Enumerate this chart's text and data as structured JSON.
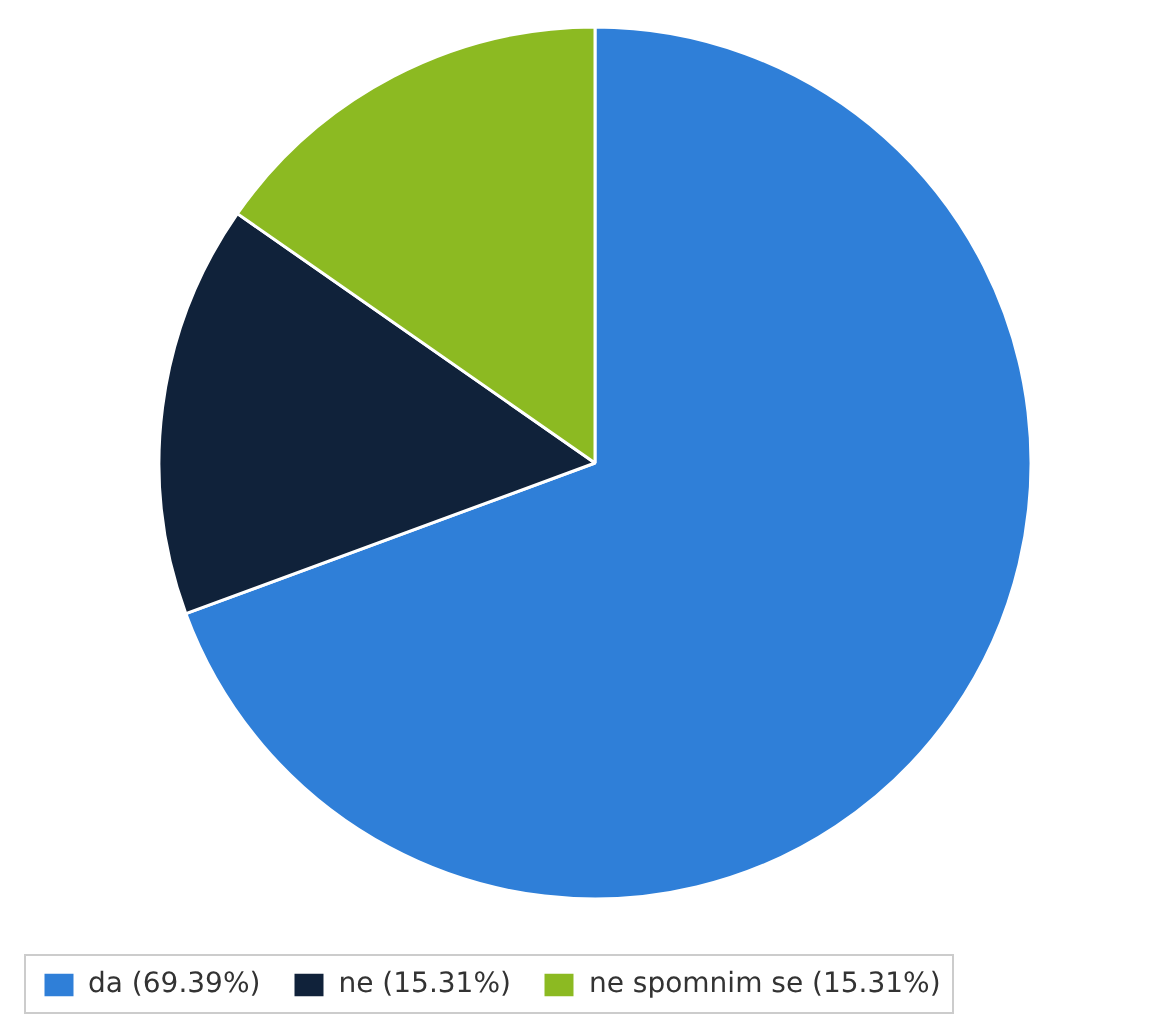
{
  "chart_data": {
    "type": "pie",
    "categories": [
      "da (69.39%)",
      "ne (15.31%)",
      "ne spomnim se (15.31%)"
    ],
    "values": [
      69.39,
      15.31,
      15.31
    ],
    "colors": [
      "#2f7fd8",
      "#10223a",
      "#8cba22"
    ],
    "legend": "bottom"
  }
}
